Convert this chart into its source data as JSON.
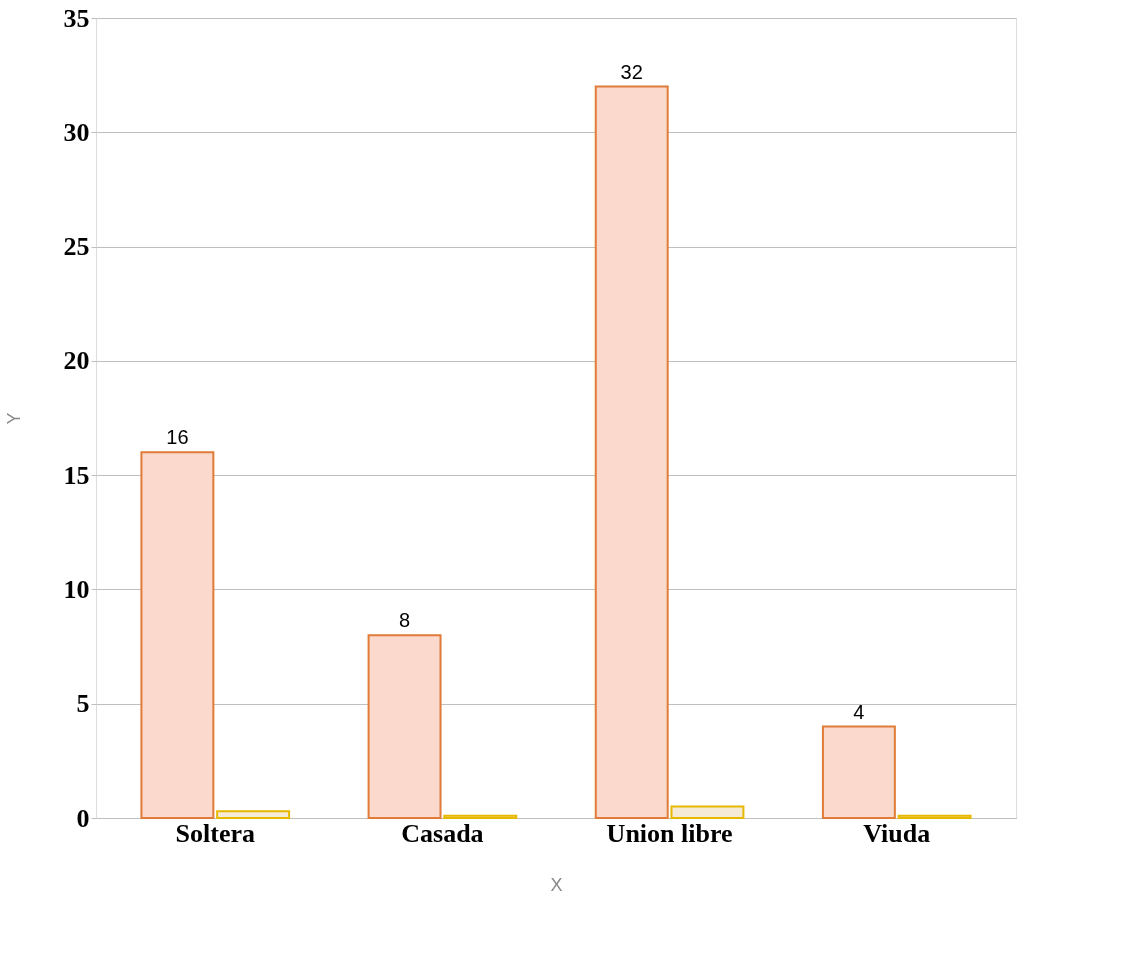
{
  "chart_data": {
    "type": "bar",
    "xlabel": "X",
    "ylabel": "Y",
    "categories": [
      "Soltera",
      "Casada",
      "Union libre",
      "Viuda"
    ],
    "series": [
      {
        "color": "#fbd9cc",
        "values": [
          16,
          8,
          32,
          4
        ],
        "value_labels": [
          "16",
          "8",
          "32",
          "4"
        ]
      },
      {
        "color": "#f5ead6",
        "values": [
          0.3,
          0.1,
          0.5,
          0.1
        ]
      }
    ],
    "ylim": [
      0,
      35
    ],
    "yticks": [
      0,
      5,
      10,
      15,
      20,
      25,
      30,
      35
    ],
    "grid": "y",
    "legend": false
  }
}
